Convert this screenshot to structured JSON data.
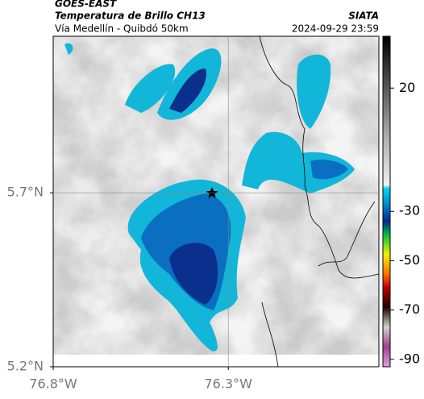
{
  "header": {
    "satellite": "GOES-EAST",
    "product": "Temperatura de Brillo CH13",
    "source": "SIATA",
    "route": "Vía Medellín - Quibdó 50km",
    "timestamp": "2024-09-29 23:59"
  },
  "map": {
    "lat_range": [
      5.2,
      6.15
    ],
    "lon_range": [
      -76.8,
      -75.87
    ],
    "lat_ticks": [
      {
        "value": 5.7,
        "label": "5.7°N"
      },
      {
        "value": 5.2,
        "label": "5.2°N"
      }
    ],
    "lon_ticks": [
      {
        "value": -76.8,
        "label": "76.8°W"
      },
      {
        "value": -76.3,
        "label": "76.3°W"
      }
    ]
  },
  "colorbar": {
    "range": [
      -93,
      41
    ],
    "ticks": [
      20,
      -30,
      -50,
      -70,
      -90
    ]
  }
}
